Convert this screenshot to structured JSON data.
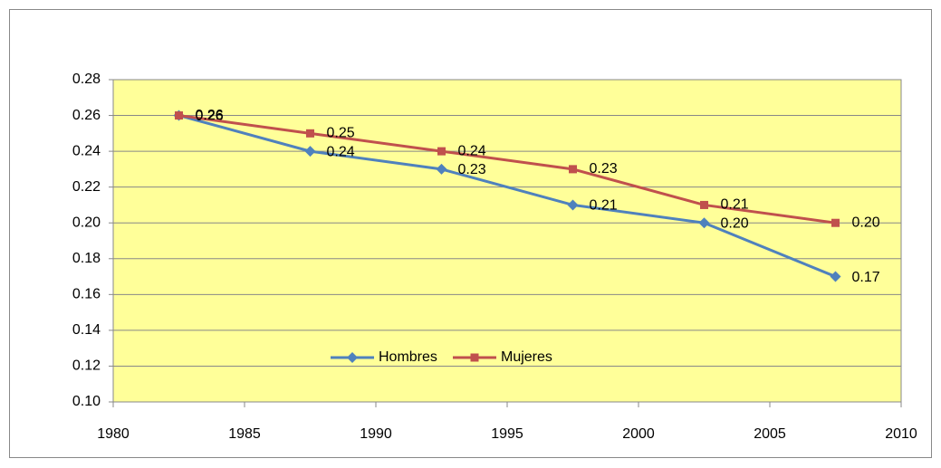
{
  "chart_data": {
    "type": "line",
    "x": [
      1982.5,
      1987.5,
      1992.5,
      1997.5,
      2002.5,
      2007.5
    ],
    "series": [
      {
        "name": "Hombres",
        "color": "#4f81bd",
        "marker": "diamond",
        "values": [
          0.26,
          0.24,
          0.23,
          0.21,
          0.2,
          0.17
        ],
        "value_labels": [
          "0.26",
          "0.24",
          "0.23",
          "0.21",
          "0.20",
          "0.17"
        ]
      },
      {
        "name": "Mujeres",
        "color": "#c0504d",
        "marker": "square",
        "values": [
          0.26,
          0.25,
          0.24,
          0.23,
          0.21,
          0.2
        ],
        "value_labels": [
          "0.26",
          "0.25",
          "0.24",
          "0.23",
          "0.21",
          "0.20"
        ]
      }
    ],
    "xlim": [
      1980,
      2010
    ],
    "xticks": [
      1980,
      1985,
      1990,
      1995,
      2000,
      2005,
      2010
    ],
    "ylim": [
      0.1,
      0.28
    ],
    "yticks": [
      {
        "value": 0.1,
        "label": "0.10"
      },
      0.12,
      0.14,
      0.16,
      0.18,
      {
        "value": 0.2,
        "label": "0.20"
      },
      0.22,
      0.24,
      0.26,
      0.28
    ],
    "grid": true,
    "plot_background": "#ffff99",
    "legend": "inside-bottom"
  }
}
